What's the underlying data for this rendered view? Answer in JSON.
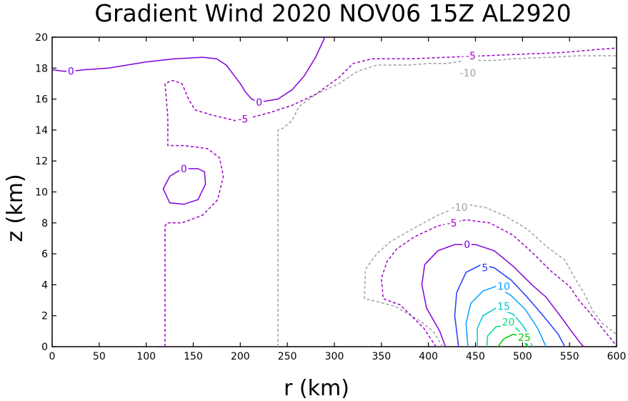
{
  "chart_data": {
    "type": "contour",
    "title": "Gradient Wind 2020 NOV06 15Z  AL2920",
    "xlabel": "r (km)",
    "ylabel": "z (km)",
    "xlim": [
      0,
      600
    ],
    "ylim": [
      0,
      20
    ],
    "xticks": [
      0,
      50,
      100,
      150,
      200,
      250,
      300,
      350,
      400,
      450,
      500,
      550,
      600
    ],
    "yticks": [
      0,
      2,
      4,
      6,
      8,
      10,
      12,
      14,
      16,
      18,
      20
    ],
    "grid": false,
    "colors": {
      "neg10": "#a0a0a0",
      "neg5": "#a000c8",
      "zero": "#8200dc",
      "pos5": "#1e3cff",
      "pos10": "#00a0ff",
      "pos15": "#00c8c8",
      "pos20": "#00dc82",
      "pos25": "#00c800"
    },
    "contours": [
      {
        "level": -10,
        "label": "-10",
        "color": "neg10",
        "dashed": true,
        "points": [
          [
            240,
            0
          ],
          [
            240,
            14
          ],
          [
            245,
            14.1
          ],
          [
            255,
            14.6
          ],
          [
            262,
            15.5
          ],
          [
            280,
            16.3
          ],
          [
            305,
            17
          ],
          [
            325,
            17.8
          ],
          [
            345,
            18.2
          ],
          [
            380,
            18.2
          ],
          [
            400,
            18.3
          ],
          [
            420,
            18.3
          ],
          [
            440,
            18.5
          ],
          [
            470,
            18.5
          ],
          [
            490,
            18.6
          ],
          [
            530,
            18.7
          ],
          [
            560,
            18.8
          ],
          [
            600,
            18.8
          ]
        ]
      },
      {
        "level": -5,
        "label": "-5",
        "color": "neg5",
        "dashed": true,
        "points": [
          [
            120,
            0
          ],
          [
            120,
            7.8
          ],
          [
            122,
            8.0
          ],
          [
            138,
            8.0
          ],
          [
            160,
            8.5
          ],
          [
            176,
            9.5
          ],
          [
            182,
            11
          ],
          [
            178,
            12.2
          ],
          [
            165,
            12.8
          ],
          [
            140,
            13.0
          ],
          [
            123,
            13.0
          ],
          [
            123,
            14.8
          ],
          [
            120,
            17.0
          ],
          [
            128,
            17.2
          ],
          [
            138,
            17.0
          ],
          [
            145,
            16.0
          ],
          [
            152,
            15.3
          ],
          [
            168,
            15.0
          ],
          [
            195,
            14.6
          ],
          [
            205,
            14.7
          ],
          [
            230,
            15.1
          ],
          [
            255,
            15.6
          ],
          [
            280,
            16.3
          ],
          [
            305,
            17.4
          ],
          [
            320,
            18.3
          ],
          [
            340,
            18.6
          ],
          [
            380,
            18.6
          ],
          [
            420,
            18.7
          ],
          [
            460,
            18.8
          ],
          [
            500,
            18.9
          ],
          [
            540,
            19.0
          ],
          [
            580,
            19.2
          ],
          [
            600,
            19.3
          ]
        ]
      },
      {
        "level": 0,
        "label": "0",
        "color": "zero",
        "dashed": false,
        "points": [
          [
            0,
            17.9
          ],
          [
            12,
            17.8
          ],
          [
            20,
            17.8
          ],
          [
            35,
            17.9
          ],
          [
            60,
            18.0
          ],
          [
            100,
            18.4
          ],
          [
            130,
            18.6
          ],
          [
            160,
            18.7
          ],
          [
            175,
            18.6
          ],
          [
            185,
            18.2
          ],
          [
            190,
            17.8
          ],
          [
            200,
            17.0
          ],
          [
            205,
            16.5
          ],
          [
            212,
            16.0
          ],
          [
            220,
            15.8
          ],
          [
            240,
            16.0
          ],
          [
            255,
            16.6
          ],
          [
            268,
            17.5
          ],
          [
            280,
            18.7
          ],
          [
            290,
            20.0
          ]
        ]
      },
      {
        "level": 0,
        "label": "0",
        "color": "zero",
        "dashed": false,
        "closed": true,
        "points": [
          [
            140,
            9.2
          ],
          [
            155,
            9.5
          ],
          [
            163,
            10.5
          ],
          [
            162,
            11.3
          ],
          [
            155,
            11.5
          ],
          [
            138,
            11.5
          ],
          [
            125,
            11.0
          ],
          [
            118,
            10.2
          ],
          [
            125,
            9.3
          ],
          [
            140,
            9.2
          ]
        ]
      },
      {
        "level": -10,
        "label": "-10",
        "color": "neg10",
        "dashed": true,
        "points": [
          [
            415,
            0
          ],
          [
            405,
            1.0
          ],
          [
            390,
            1.7
          ],
          [
            365,
            2.6
          ],
          [
            340,
            3.0
          ],
          [
            332,
            3.1
          ],
          [
            333,
            5.0
          ],
          [
            345,
            6.0
          ],
          [
            360,
            6.8
          ],
          [
            380,
            7.5
          ],
          [
            410,
            8.5
          ],
          [
            440,
            9.2
          ],
          [
            460,
            9.0
          ],
          [
            480,
            8.5
          ],
          [
            505,
            7.6
          ],
          [
            525,
            6.5
          ],
          [
            545,
            5.6
          ],
          [
            555,
            4.5
          ],
          [
            565,
            3.5
          ],
          [
            575,
            2.3
          ],
          [
            585,
            1.5
          ],
          [
            600,
            0.8
          ]
        ]
      },
      {
        "level": -5,
        "label": "-5",
        "color": "neg5",
        "dashed": true,
        "points": [
          [
            408,
            0
          ],
          [
            395,
            1.2
          ],
          [
            370,
            2.7
          ],
          [
            352,
            3.1
          ],
          [
            350,
            4.4
          ],
          [
            356,
            5.5
          ],
          [
            366,
            6.3
          ],
          [
            385,
            7.1
          ],
          [
            410,
            7.8
          ],
          [
            440,
            8.2
          ],
          [
            465,
            8.0
          ],
          [
            490,
            7.2
          ],
          [
            510,
            6.1
          ],
          [
            530,
            4.9
          ],
          [
            550,
            3.9
          ],
          [
            560,
            3.0
          ],
          [
            570,
            2.3
          ],
          [
            582,
            1.4
          ],
          [
            598,
            0.2
          ],
          [
            600,
            0.0
          ]
        ]
      },
      {
        "level": 0,
        "label": "0",
        "color": "zero",
        "dashed": false,
        "points": [
          [
            418,
            0
          ],
          [
            412,
            1.0
          ],
          [
            398,
            2.5
          ],
          [
            393,
            4.0
          ],
          [
            396,
            5.3
          ],
          [
            410,
            6.2
          ],
          [
            428,
            6.6
          ],
          [
            450,
            6.6
          ],
          [
            470,
            6.2
          ],
          [
            490,
            5.2
          ],
          [
            510,
            4.0
          ],
          [
            525,
            3.2
          ],
          [
            540,
            2.0
          ],
          [
            552,
            1.0
          ],
          [
            562,
            0.2
          ],
          [
            565,
            0.0
          ]
        ]
      },
      {
        "level": 5,
        "label": "5",
        "color": "pos5",
        "dashed": false,
        "points": [
          [
            432,
            0
          ],
          [
            428,
            2.0
          ],
          [
            430,
            3.5
          ],
          [
            440,
            4.8
          ],
          [
            456,
            5.3
          ],
          [
            470,
            5.1
          ],
          [
            488,
            4.3
          ],
          [
            505,
            3.2
          ],
          [
            522,
            2.0
          ],
          [
            538,
            0.8
          ],
          [
            545,
            0.0
          ]
        ]
      },
      {
        "level": 10,
        "label": "10",
        "color": "pos10",
        "dashed": false,
        "points": [
          [
            442,
            0
          ],
          [
            440,
            1.5
          ],
          [
            445,
            2.8
          ],
          [
            458,
            3.6
          ],
          [
            472,
            3.9
          ],
          [
            488,
            3.3
          ],
          [
            503,
            2.4
          ],
          [
            516,
            1.2
          ],
          [
            525,
            0.0
          ]
        ]
      },
      {
        "level": 15,
        "label": "15",
        "color": "pos15",
        "dashed": false,
        "points": [
          [
            452,
            0
          ],
          [
            452,
            1.2
          ],
          [
            458,
            2.0
          ],
          [
            472,
            2.5
          ],
          [
            490,
            2.1
          ],
          [
            500,
            1.4
          ],
          [
            508,
            0.6
          ],
          [
            510,
            0.0
          ]
        ]
      },
      {
        "level": 20,
        "label": "20",
        "color": "pos20",
        "dashed": false,
        "points": [
          [
            462,
            0
          ],
          [
            463,
            0.7
          ],
          [
            472,
            1.3
          ],
          [
            490,
            1.4
          ],
          [
            498,
            0.9
          ],
          [
            504,
            0.3
          ],
          [
            506,
            0.0
          ]
        ]
      },
      {
        "level": 25,
        "label": "25",
        "color": "pos25",
        "dashed": false,
        "points": [
          [
            474,
            0
          ],
          [
            480,
            0.5
          ],
          [
            490,
            0.8
          ],
          [
            498,
            0.7
          ],
          [
            502,
            0.3
          ],
          [
            505,
            0.0
          ]
        ]
      }
    ],
    "labels": [
      {
        "text": "0",
        "x": 20,
        "y": 17.8,
        "color": "zero"
      },
      {
        "text": "0",
        "x": 220,
        "y": 15.8,
        "color": "zero"
      },
      {
        "text": "-5",
        "x": 203,
        "y": 14.7,
        "color": "neg5"
      },
      {
        "text": "0",
        "x": 140,
        "y": 11.5,
        "color": "zero"
      },
      {
        "text": "-5",
        "x": 445,
        "y": 18.8,
        "color": "neg5"
      },
      {
        "text": "-10",
        "x": 442,
        "y": 17.7,
        "color": "neg10"
      },
      {
        "text": "-10",
        "x": 433,
        "y": 9.0,
        "color": "neg10"
      },
      {
        "text": "-5",
        "x": 425,
        "y": 8.0,
        "color": "neg5"
      },
      {
        "text": "0",
        "x": 441,
        "y": 6.6,
        "color": "zero"
      },
      {
        "text": "5",
        "x": 460,
        "y": 5.1,
        "color": "pos5"
      },
      {
        "text": "10",
        "x": 480,
        "y": 3.9,
        "color": "pos10"
      },
      {
        "text": "15",
        "x": 480,
        "y": 2.6,
        "color": "pos15"
      },
      {
        "text": "20",
        "x": 485,
        "y": 1.6,
        "color": "pos20"
      },
      {
        "text": "25",
        "x": 502,
        "y": 0.6,
        "color": "pos25"
      }
    ]
  }
}
